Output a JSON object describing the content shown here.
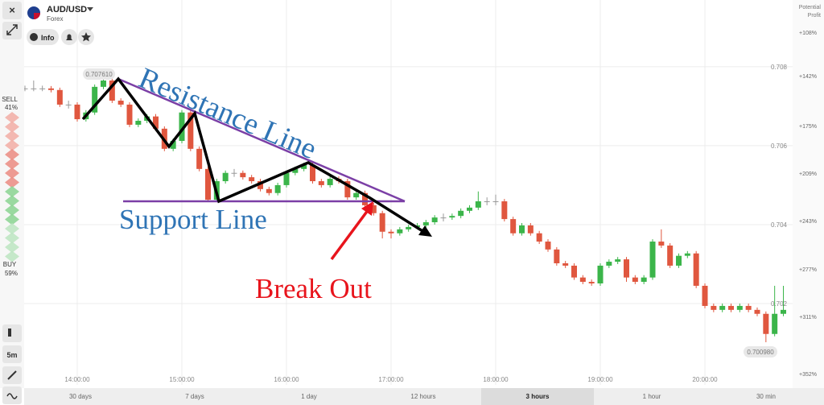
{
  "chart_data": {
    "type": "candlestick",
    "x": [
      "13:25:00",
      "13:30:00",
      "13:35:00",
      "13:40:00",
      "13:45:00",
      "13:50:00",
      "13:55:00",
      "14:00:00",
      "14:05:00",
      "14:10:00",
      "14:15:00",
      "14:20:00",
      "14:25:00",
      "14:30:00",
      "14:35:00",
      "14:40:00",
      "14:45:00",
      "14:50:00",
      "14:55:00",
      "15:00:00",
      "15:05:00",
      "15:10:00",
      "15:15:00",
      "15:20:00",
      "15:25:00",
      "15:30:00",
      "15:35:00",
      "15:40:00",
      "15:45:00",
      "15:50:00",
      "15:55:00",
      "16:00:00",
      "16:05:00",
      "16:10:00",
      "16:15:00",
      "16:20:00",
      "16:25:00",
      "16:30:00",
      "16:35:00",
      "16:40:00",
      "16:45:00",
      "16:50:00",
      "16:55:00",
      "17:00:00",
      "17:05:00",
      "17:10:00",
      "17:15:00",
      "17:20:00",
      "17:25:00",
      "17:30:00",
      "17:35:00",
      "17:40:00",
      "17:45:00",
      "17:50:00",
      "17:55:00",
      "18:00:00",
      "18:05:00",
      "18:10:00",
      "18:15:00",
      "18:20:00",
      "18:25:00",
      "18:30:00",
      "18:35:00",
      "18:40:00",
      "18:45:00",
      "18:50:00",
      "18:55:00",
      "19:00:00",
      "19:05:00",
      "19:10:00",
      "19:15:00",
      "19:20:00",
      "19:25:00",
      "19:30:00",
      "19:35:00",
      "19:40:00",
      "19:45:00",
      "19:50:00",
      "19:55:00",
      "20:00:00",
      "20:05:00",
      "20:10:00",
      "20:15:00",
      "20:20:00",
      "20:25:00",
      "20:30:00",
      "20:35:00",
      "20:40:00",
      "20:45:00"
    ],
    "open": [
      0.70745,
      0.70745,
      0.70745,
      0.70745,
      0.70745,
      0.70741,
      0.70704,
      0.70704,
      0.70667,
      0.70684,
      0.70749,
      0.70765,
      0.70714,
      0.70704,
      0.70653,
      0.70663,
      0.70674,
      0.70643,
      0.70592,
      0.70612,
      0.70684,
      0.70592,
      0.70541,
      0.70463,
      0.7051,
      0.70531,
      0.70531,
      0.7052,
      0.7051,
      0.7049,
      0.7048,
      0.705,
      0.70531,
      0.70541,
      0.70551,
      0.7051,
      0.705,
      0.70516,
      0.7051,
      0.70469,
      0.7048,
      0.70449,
      0.70429,
      0.70382,
      0.70378,
      0.70388,
      0.70394,
      0.70398,
      0.70406,
      0.70418,
      0.70418,
      0.70422,
      0.70435,
      0.70443,
      0.70459,
      0.70459,
      0.70459,
      0.70414,
      0.70378,
      0.70398,
      0.70378,
      0.70357,
      0.70337,
      0.70302,
      0.70296,
      0.70266,
      0.70255,
      0.70251,
      0.70296,
      0.70306,
      0.70312,
      0.70266,
      0.70255,
      0.70266,
      0.70357,
      0.70347,
      0.70296,
      0.70321,
      0.70327,
      0.70245,
      0.70194,
      0.70184,
      0.70194,
      0.70184,
      0.70194,
      0.70184,
      0.70174,
      0.70123,
      0.70174
    ],
    "high": [
      0.70755,
      0.70752,
      0.70765,
      0.70752,
      0.70751,
      0.70747,
      0.70714,
      0.7071,
      0.7069,
      0.70755,
      0.70772,
      0.70771,
      0.7072,
      0.7071,
      0.70669,
      0.7068,
      0.7068,
      0.70649,
      0.70618,
      0.7069,
      0.7069,
      0.70598,
      0.70547,
      0.70516,
      0.70537,
      0.70541,
      0.70537,
      0.70526,
      0.70516,
      0.70496,
      0.70506,
      0.70537,
      0.70547,
      0.70557,
      0.70557,
      0.70516,
      0.70522,
      0.70522,
      0.70516,
      0.70486,
      0.70486,
      0.70455,
      0.70435,
      0.70388,
      0.70394,
      0.704,
      0.70404,
      0.70412,
      0.70424,
      0.70428,
      0.70428,
      0.70441,
      0.70449,
      0.70484,
      0.70469,
      0.70476,
      0.70465,
      0.7042,
      0.70404,
      0.70404,
      0.70384,
      0.70363,
      0.70343,
      0.70308,
      0.70302,
      0.70272,
      0.70261,
      0.70302,
      0.70312,
      0.70318,
      0.70318,
      0.70272,
      0.70272,
      0.70363,
      0.70388,
      0.70353,
      0.70327,
      0.70333,
      0.70333,
      0.70251,
      0.702,
      0.702,
      0.702,
      0.702,
      0.702,
      0.7019,
      0.7018,
      0.70245,
      0.70245
    ],
    "low": [
      0.70735,
      0.70738,
      0.70738,
      0.70738,
      0.70735,
      0.70698,
      0.70694,
      0.70661,
      0.70661,
      0.70678,
      0.70743,
      0.70708,
      0.70698,
      0.70647,
      0.70647,
      0.70657,
      0.70637,
      0.70586,
      0.70586,
      0.70606,
      0.70586,
      0.70535,
      0.70457,
      0.70457,
      0.70504,
      0.70521,
      0.70514,
      0.70504,
      0.70484,
      0.70474,
      0.70474,
      0.70494,
      0.70525,
      0.70535,
      0.70504,
      0.70494,
      0.70494,
      0.70504,
      0.70463,
      0.70463,
      0.70443,
      0.70423,
      0.70365,
      0.70365,
      0.70372,
      0.70382,
      0.70388,
      0.70392,
      0.704,
      0.70408,
      0.70412,
      0.70416,
      0.70429,
      0.70437,
      0.70449,
      0.70449,
      0.70408,
      0.70372,
      0.70372,
      0.70372,
      0.70351,
      0.70331,
      0.70296,
      0.7029,
      0.7026,
      0.70249,
      0.70245,
      0.70245,
      0.7029,
      0.703,
      0.70255,
      0.70249,
      0.70249,
      0.7026,
      0.70341,
      0.7029,
      0.7029,
      0.70315,
      0.70239,
      0.70188,
      0.70178,
      0.70178,
      0.70178,
      0.70178,
      0.70178,
      0.70168,
      0.70102,
      0.70117,
      0.70168
    ],
    "close": [
      0.70745,
      0.70745,
      0.70745,
      0.70745,
      0.70741,
      0.70704,
      0.70704,
      0.70667,
      0.70684,
      0.70749,
      0.70765,
      0.70714,
      0.70704,
      0.70653,
      0.70663,
      0.70674,
      0.70643,
      0.70592,
      0.70612,
      0.70684,
      0.70592,
      0.70541,
      0.70463,
      0.7051,
      0.70531,
      0.70531,
      0.7052,
      0.7051,
      0.7049,
      0.7048,
      0.705,
      0.70531,
      0.70541,
      0.70551,
      0.7051,
      0.705,
      0.70516,
      0.7051,
      0.70469,
      0.7048,
      0.70449,
      0.70429,
      0.70382,
      0.70378,
      0.70388,
      0.70394,
      0.70398,
      0.70406,
      0.70418,
      0.70418,
      0.70422,
      0.70435,
      0.70443,
      0.70459,
      0.70459,
      0.70459,
      0.70414,
      0.70378,
      0.70398,
      0.70378,
      0.70357,
      0.70337,
      0.70302,
      0.70296,
      0.70266,
      0.70255,
      0.70251,
      0.70296,
      0.70306,
      0.70312,
      0.70266,
      0.70255,
      0.70266,
      0.70357,
      0.70347,
      0.70296,
      0.70321,
      0.70327,
      0.70245,
      0.70194,
      0.70184,
      0.70194,
      0.70184,
      0.70194,
      0.70184,
      0.70174,
      0.70123,
      0.70174,
      0.70184
    ],
    "up_color": "#3bb54a",
    "down_color": "#e0573f",
    "flat_color": "#999999",
    "ylim": [
      0.69994,
      0.70969
    ],
    "yticks": [
      0.708,
      0.706,
      0.704,
      0.702
    ],
    "xticks": [
      "14:00:00",
      "15:00:00",
      "16:00:00",
      "17:00:00",
      "18:00:00",
      "19:00:00",
      "20:00:00"
    ],
    "grid": true,
    "high_label": "0.707610",
    "low_label": "0.700980",
    "annotations": [
      "Resistance Line",
      "Support Line",
      "Break Out"
    ]
  },
  "ui": {
    "asset": "AUD/USD",
    "market": "Forex",
    "info_button": "Info",
    "sell_label": "SELL",
    "sell_pct": "41%",
    "buy_label": "BUY",
    "buy_pct": "59%",
    "interval": "5m",
    "profit_label": [
      "Potential",
      "Profit"
    ],
    "profit_scale": [
      "+108%",
      "+142%",
      "+175%",
      "+209%",
      "+243%",
      "+277%",
      "+311%",
      "+352%"
    ],
    "timeframes": [
      "30 days",
      "7 days",
      "1 day",
      "12 hours",
      "3 hours",
      "1 hour",
      "30 min"
    ],
    "selected_timeframe_index": 4
  }
}
